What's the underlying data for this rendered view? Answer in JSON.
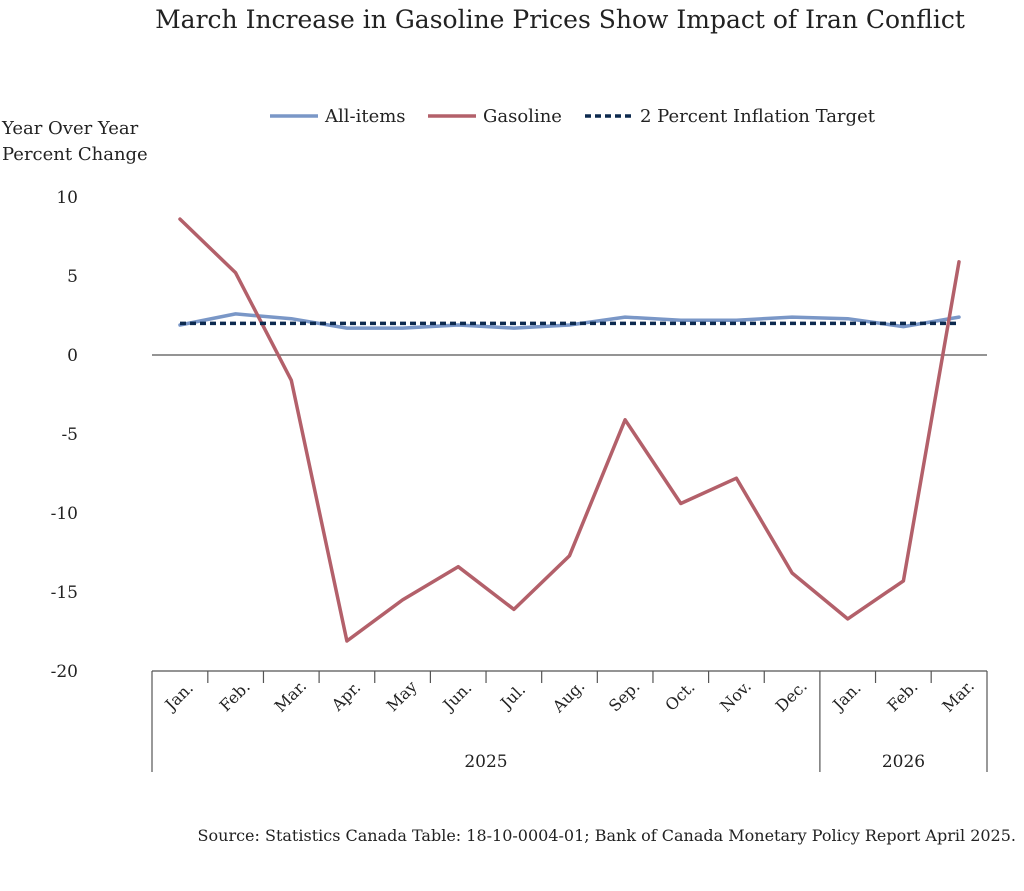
{
  "chart_data": {
    "type": "line",
    "title": "March Increase in Gasoline Prices Show Impact of Iran Conflict",
    "ylabel_lines": [
      "Year Over Year",
      "Percent Change"
    ],
    "xlabel": "",
    "categories": [
      "Jan.",
      "Feb.",
      "Mar.",
      "Apr.",
      "May",
      "Jun.",
      "Jul.",
      "Aug.",
      "Sep.",
      "Oct.",
      "Nov.",
      "Dec.",
      "Jan.",
      "Feb.",
      "Mar."
    ],
    "groups": [
      {
        "label": "2025",
        "start": 0,
        "end": 11
      },
      {
        "label": "2026",
        "start": 12,
        "end": 14
      }
    ],
    "ylim": [
      -20,
      10
    ],
    "yticks": [
      10,
      5,
      0,
      -5,
      -10,
      -15,
      -20
    ],
    "ytick_labels": [
      "10",
      "5",
      "0",
      "-5",
      "-10",
      "-15",
      "-20"
    ],
    "grid": false,
    "legend_position": "top-center",
    "series": [
      {
        "name": "All-items",
        "color": "#7a97c7",
        "style": "solid",
        "values": [
          1.9,
          2.6,
          2.3,
          1.7,
          1.7,
          1.9,
          1.7,
          1.9,
          2.4,
          2.2,
          2.2,
          2.4,
          2.3,
          1.8,
          2.4
        ]
      },
      {
        "name": "Gasoline",
        "color": "#b3606a",
        "style": "solid",
        "values": [
          8.6,
          5.2,
          -1.6,
          -18.1,
          -15.5,
          -13.4,
          -16.1,
          -12.7,
          -4.1,
          -9.4,
          -7.8,
          -13.8,
          -16.7,
          -14.3,
          5.9
        ]
      },
      {
        "name": "2 Percent Inflation Target",
        "color": "#0d2a4f",
        "style": "dashed",
        "values": [
          2,
          2,
          2,
          2,
          2,
          2,
          2,
          2,
          2,
          2,
          2,
          2,
          2,
          2,
          2
        ]
      }
    ],
    "source": "Source: Statistics Canada Table: 18-10-0004-01; Bank of Canada Monetary Policy Report April 2025."
  }
}
